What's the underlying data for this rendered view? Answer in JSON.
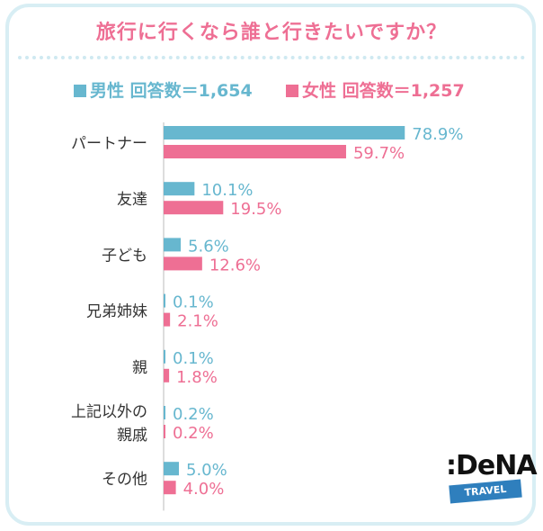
{
  "title": "旅行に行くなら誰と行きたいですか？",
  "legend": {
    "male": "男性 回答数＝1,654",
    "female": "女性 回答数＝1,257"
  },
  "colors": {
    "male": "#67b7cf",
    "female": "#ee6f94"
  },
  "logo": {
    "main": ":DeNA",
    "sub": "TRAVEL"
  },
  "chart_data": {
    "type": "bar",
    "orientation": "horizontal",
    "categories": [
      "パートナー",
      "友達",
      "子ども",
      "兄弟姉妹",
      "親",
      "上記以外の親戚",
      "その他"
    ],
    "category_lines": [
      [
        "パートナー"
      ],
      [
        "友達"
      ],
      [
        "子ども"
      ],
      [
        "兄弟姉妹"
      ],
      [
        "親"
      ],
      [
        "上記以外の",
        "親戚"
      ],
      [
        "その他"
      ]
    ],
    "series": [
      {
        "name": "男性 回答数＝1,654",
        "values": [
          78.9,
          10.1,
          5.6,
          0.1,
          0.1,
          0.2,
          5.0
        ],
        "labels": [
          "78.9%",
          "10.1%",
          "5.6%",
          "0.1%",
          "0.1%",
          "0.2%",
          "5.0%"
        ]
      },
      {
        "name": "女性 回答数＝1,257",
        "values": [
          59.7,
          19.5,
          12.6,
          2.1,
          1.8,
          0.2,
          4.0
        ],
        "labels": [
          "59.7%",
          "19.5%",
          "12.6%",
          "2.1%",
          "1.8%",
          "0.2%",
          "4.0%"
        ]
      }
    ],
    "xlim": [
      0,
      100
    ],
    "legend_position": "top"
  }
}
